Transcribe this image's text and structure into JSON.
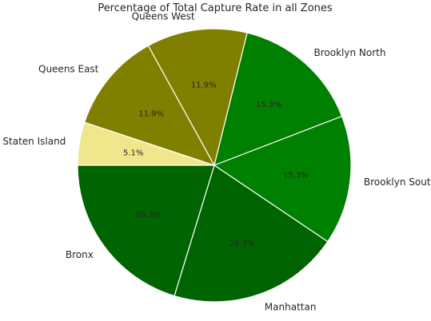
{
  "chart_data": {
    "type": "pie",
    "title": "Percentage of Total Capture Rate in all Zones",
    "slices": [
      {
        "label": "Staten Island",
        "value": 5.1,
        "pct_label": "5.1%",
        "color": "#f0e68c"
      },
      {
        "label": "Queens East",
        "value": 11.9,
        "pct_label": "11.9%",
        "color": "#808000"
      },
      {
        "label": "Queens West",
        "value": 11.9,
        "pct_label": "11.9%",
        "color": "#808000"
      },
      {
        "label": "Brooklyn North",
        "value": 15.3,
        "pct_label": "15.3%",
        "color": "#008000"
      },
      {
        "label": "Brooklyn South",
        "value": 15.3,
        "pct_label": "15.3%",
        "color": "#008000"
      },
      {
        "label": "Manhattan",
        "value": 20.3,
        "pct_label": "20.3%",
        "color": "#006400"
      },
      {
        "label": "Bronx",
        "value": 20.3,
        "pct_label": "20.3%",
        "color": "#006400"
      }
    ],
    "start_angle_deg": 180,
    "direction": "clockwise",
    "legend": "none"
  }
}
